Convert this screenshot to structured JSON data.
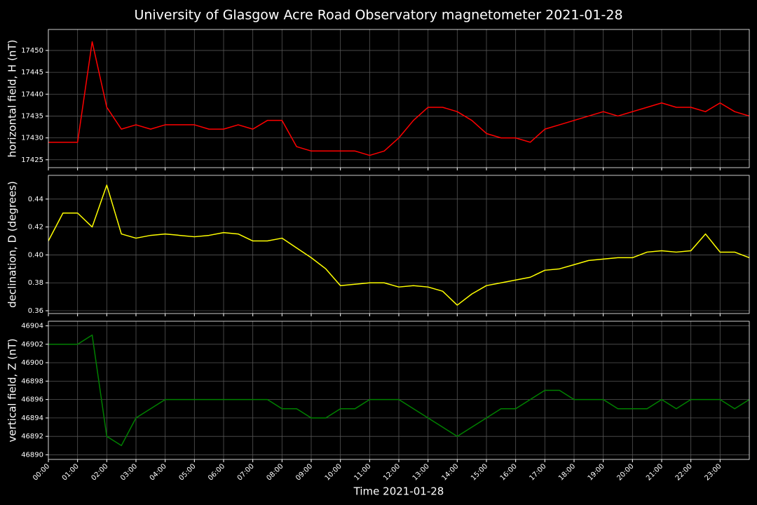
{
  "title": "University of Glasgow Acre Road Observatory magnetometer 2021-01-28",
  "chart_data": [
    {
      "type": "line",
      "ylabel": "horizontal field, H (nT)",
      "color": "#ff0000",
      "x": [
        0,
        0.5,
        1,
        1.5,
        2,
        2.5,
        3,
        3.5,
        4,
        4.5,
        5,
        5.5,
        6,
        6.5,
        7,
        7.5,
        8,
        8.5,
        9,
        9.5,
        10,
        10.5,
        11,
        11.5,
        12,
        12.5,
        13,
        13.5,
        14,
        14.5,
        15,
        15.5,
        16,
        16.5,
        17,
        17.5,
        18,
        18.5,
        19,
        19.5,
        20,
        20.5,
        21,
        21.5,
        22,
        22.5,
        23,
        23.5,
        24
      ],
      "values": [
        17429,
        17429,
        17429,
        17452,
        17437,
        17432,
        17433,
        17432,
        17433,
        17433,
        17433,
        17432,
        17432,
        17433,
        17432,
        17434,
        17434,
        17428,
        17427,
        17427,
        17427,
        17427,
        17426,
        17427,
        17430,
        17434,
        17437,
        17437,
        17436,
        17434,
        17431,
        17430,
        17430,
        17429,
        17432,
        17433,
        17434,
        17435,
        17436,
        17435,
        17436,
        17437,
        17438,
        17437,
        17437,
        17436,
        17438,
        17436,
        17435
      ],
      "ylim": [
        17423.2,
        17454.8
      ],
      "yticks": [
        17425,
        17430,
        17435,
        17440,
        17445,
        17450
      ],
      "grid": true
    },
    {
      "type": "line",
      "ylabel": "declination, D (degrees)",
      "color": "#ffff00",
      "x": [
        0,
        0.5,
        1,
        1.5,
        2,
        2.5,
        3,
        3.5,
        4,
        4.5,
        5,
        5.5,
        6,
        6.5,
        7,
        7.5,
        8,
        8.5,
        9,
        9.5,
        10,
        10.5,
        11,
        11.5,
        12,
        12.5,
        13,
        13.5,
        14,
        14.5,
        15,
        15.5,
        16,
        16.5,
        17,
        17.5,
        18,
        18.5,
        19,
        19.5,
        20,
        20.5,
        21,
        21.5,
        22,
        22.5,
        23,
        23.5,
        24
      ],
      "values": [
        0.41,
        0.43,
        0.43,
        0.42,
        0.45,
        0.415,
        0.412,
        0.414,
        0.415,
        0.414,
        0.413,
        0.414,
        0.416,
        0.415,
        0.41,
        0.41,
        0.412,
        0.405,
        0.398,
        0.39,
        0.378,
        0.379,
        0.38,
        0.38,
        0.377,
        0.378,
        0.377,
        0.374,
        0.364,
        0.372,
        0.378,
        0.38,
        0.382,
        0.384,
        0.389,
        0.39,
        0.393,
        0.396,
        0.397,
        0.398,
        0.398,
        0.402,
        0.403,
        0.402,
        0.403,
        0.415,
        0.402,
        0.402,
        0.398
      ],
      "ylim": [
        0.358,
        0.457
      ],
      "yticks": [
        0.36,
        0.38,
        {
          "value": 0.4,
          "label": "0.40"
        },
        0.42,
        0.44
      ],
      "grid": true
    },
    {
      "type": "line",
      "ylabel": "vertical field, Z (nT)",
      "xlabel": "Time 2021-01-28",
      "color": "#008000",
      "x": [
        0,
        0.5,
        1,
        1.5,
        2,
        2.5,
        3,
        3.5,
        4,
        4.5,
        5,
        5.5,
        6,
        6.5,
        7,
        7.5,
        8,
        8.5,
        9,
        9.5,
        10,
        10.5,
        11,
        11.5,
        12,
        12.5,
        13,
        13.5,
        14,
        14.5,
        15,
        15.5,
        16,
        16.5,
        17,
        17.5,
        18,
        18.5,
        19,
        19.5,
        20,
        20.5,
        21,
        21.5,
        22,
        22.5,
        23,
        23.5,
        24
      ],
      "values": [
        46902,
        46902,
        46902,
        46903,
        46892,
        46891,
        46894,
        46895,
        46896,
        46896,
        46896,
        46896,
        46896,
        46896,
        46896,
        46896,
        46895,
        46895,
        46894,
        46894,
        46895,
        46895,
        46896,
        46896,
        46896,
        46895,
        46894,
        46893,
        46892,
        46893,
        46894,
        46895,
        46895,
        46896,
        46897,
        46897,
        46896,
        46896,
        46896,
        46895,
        46895,
        46895,
        46896,
        46895,
        46896,
        46896,
        46896,
        46895,
        46896
      ],
      "ylim": [
        46889.5,
        46904.5
      ],
      "yticks": [
        46890,
        46892,
        46894,
        46896,
        46898,
        46900,
        46902,
        46904
      ],
      "xlim": [
        0,
        24
      ],
      "xticks": [
        {
          "value": 0,
          "label": "00:00"
        },
        {
          "value": 1,
          "label": "01:00"
        },
        {
          "value": 2,
          "label": "02:00"
        },
        {
          "value": 3,
          "label": "03:00"
        },
        {
          "value": 4,
          "label": "04:00"
        },
        {
          "value": 5,
          "label": "05:00"
        },
        {
          "value": 6,
          "label": "06:00"
        },
        {
          "value": 7,
          "label": "07:00"
        },
        {
          "value": 8,
          "label": "08:00"
        },
        {
          "value": 9,
          "label": "09:00"
        },
        {
          "value": 10,
          "label": "10:00"
        },
        {
          "value": 11,
          "label": "11:00"
        },
        {
          "value": 12,
          "label": "12:00"
        },
        {
          "value": 13,
          "label": "13:00"
        },
        {
          "value": 14,
          "label": "14:00"
        },
        {
          "value": 15,
          "label": "15:00"
        },
        {
          "value": 16,
          "label": "16:00"
        },
        {
          "value": 17,
          "label": "17:00"
        },
        {
          "value": 18,
          "label": "18:00"
        },
        {
          "value": 19,
          "label": "19:00"
        },
        {
          "value": 20,
          "label": "20:00"
        },
        {
          "value": 21,
          "label": "21:00"
        },
        {
          "value": 22,
          "label": "22:00"
        },
        {
          "value": 23,
          "label": "23:00"
        }
      ],
      "grid": true
    }
  ]
}
